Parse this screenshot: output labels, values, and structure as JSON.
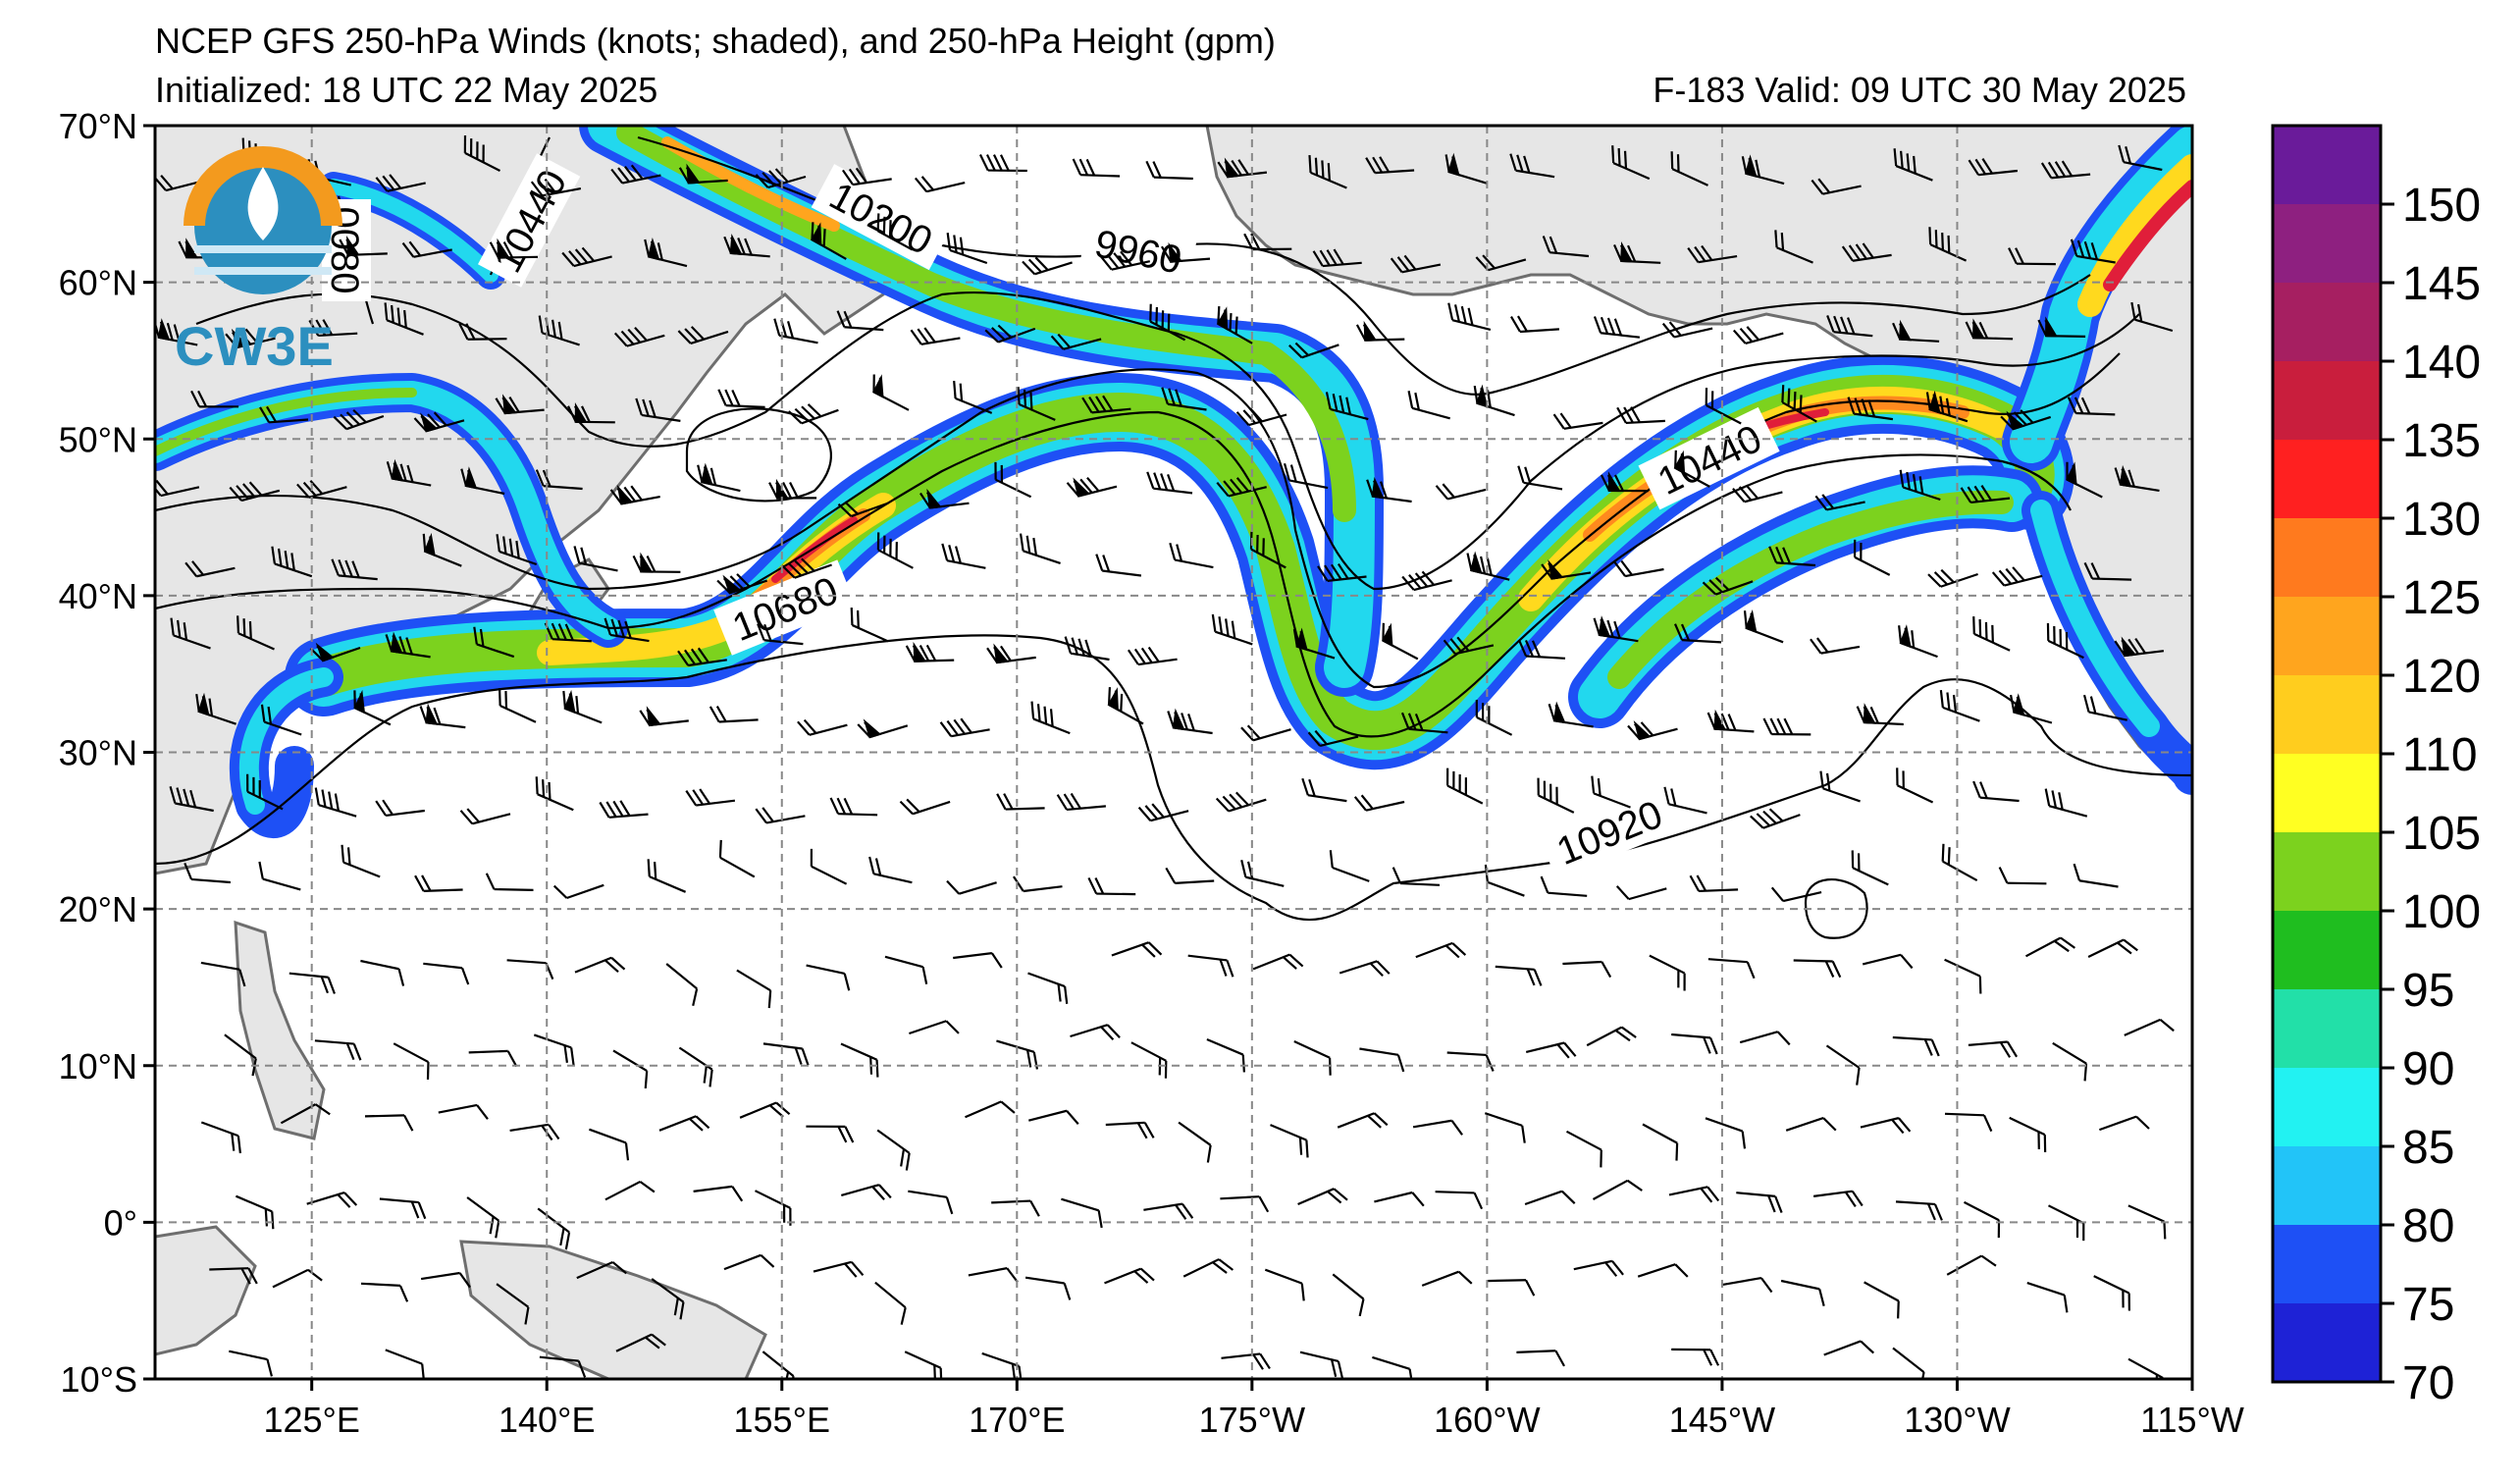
{
  "header": {
    "title": "NCEP GFS 250-hPa Winds (knots; shaded), and 250-hPa Height (gpm)",
    "initialized": "Initialized: 18 UTC 22 May 2025",
    "valid": "F-183  Valid: 09 UTC 30 May 2025"
  },
  "logo": {
    "text": "CW3E",
    "icon": "cw3e-logo-icon"
  },
  "axes": {
    "lat_labels": [
      "70°N",
      "60°N",
      "50°N",
      "40°N",
      "30°N",
      "20°N",
      "10°N",
      "0°",
      "10°S"
    ],
    "lon_labels": [
      "125°E",
      "140°E",
      "155°E",
      "170°E",
      "175°W",
      "160°W",
      "145°W",
      "130°W",
      "115°W"
    ],
    "lat_values": [
      70,
      60,
      50,
      40,
      30,
      20,
      10,
      0,
      -10
    ],
    "lon_values": [
      125,
      140,
      155,
      170,
      185,
      200,
      215,
      230,
      245
    ],
    "lon_range": [
      115,
      245
    ],
    "lat_range": [
      -10,
      70
    ],
    "grid": true
  },
  "colorbar": {
    "units": "knots",
    "ticks": [
      "150",
      "145",
      "140",
      "135",
      "130",
      "125",
      "120",
      "110",
      "105",
      "100",
      "95",
      "90",
      "85",
      "80",
      "75",
      "70"
    ],
    "colors": [
      "#6a1b9a",
      "#8e2080",
      "#a61f61",
      "#c91e3d",
      "#ff2020",
      "#ff7a1e",
      "#ffa51e",
      "#ffcd1e",
      "#ffff22",
      "#7cd21e",
      "#1fbe1f",
      "#22e0a8",
      "#22f2f2",
      "#22c4f8",
      "#1e50f5",
      "#1e22d6"
    ]
  },
  "contour_labels": [
    "10440",
    "0080",
    "10200",
    "9960",
    "10680",
    "10440",
    "10920"
  ],
  "jet_colors": {
    "outer": "#1e50f5",
    "cyan": "#22d8ee",
    "green": "#7cd21e",
    "yellow": "#ffd91e",
    "orange": "#ff8a1e",
    "red": "#e01e3a"
  },
  "land_color": "#e6e6e6",
  "coast_color": "#6e6e6e"
}
